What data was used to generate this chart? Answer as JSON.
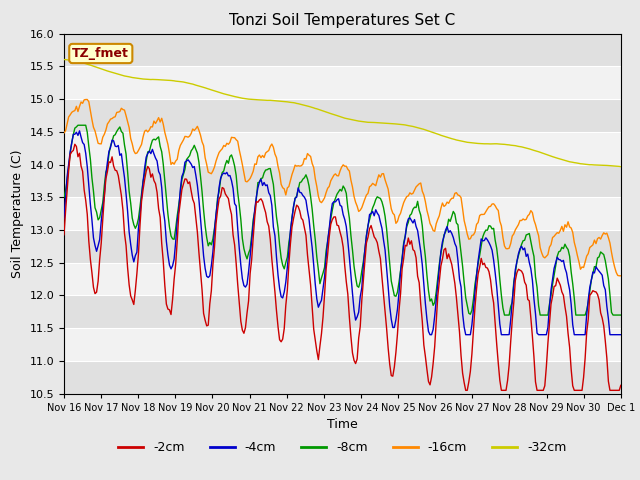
{
  "title": "Tonzi Soil Temperatures Set C",
  "ylabel": "Soil Temperature (C)",
  "xlabel": "Time",
  "ylim": [
    10.5,
    16.0
  ],
  "yticks": [
    10.5,
    11.0,
    11.5,
    12.0,
    12.5,
    13.0,
    13.5,
    14.0,
    14.5,
    15.0,
    15.5,
    16.0
  ],
  "colors": {
    "-2cm": "#cc0000",
    "-4cm": "#0000cc",
    "-8cm": "#009900",
    "-16cm": "#ff8800",
    "-32cm": "#cccc00"
  },
  "line_width": 1.0,
  "annotation": "TZ_fmet",
  "stripe_light": "#f2f2f2",
  "stripe_dark": "#e0e0e0",
  "fig_bg": "#e8e8e8"
}
